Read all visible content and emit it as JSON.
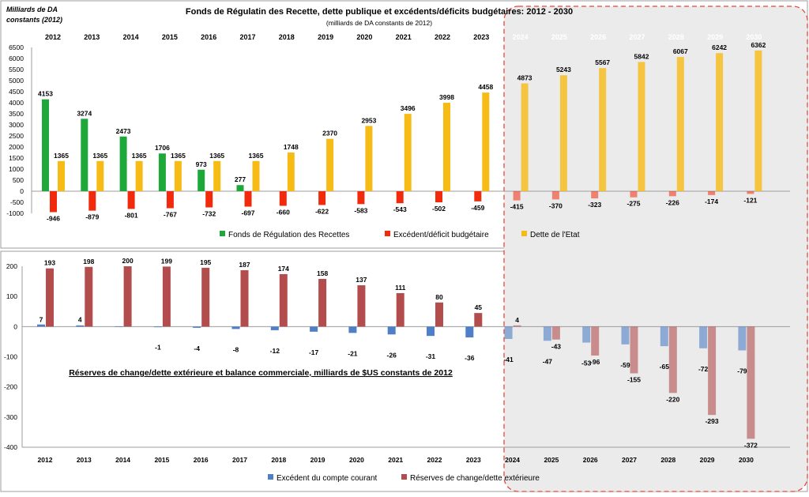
{
  "chart_data": [
    {
      "type": "bar",
      "title": "Fonds de Régulatin des Recette, dette publique et excédents/déficits budgétaires: 2012 - 2030",
      "subtitle": "(milliards de DA constants de 2012)",
      "units_label_line1": "Milliards de DA",
      "units_label_line2": "constants (2012)",
      "categories": [
        "2012",
        "2013",
        "2014",
        "2015",
        "2016",
        "2017",
        "2018",
        "2019",
        "2020",
        "2021",
        "2022",
        "2023",
        "2024",
        "2025",
        "2026",
        "2027",
        "2028",
        "2029",
        "2030"
      ],
      "ylim": [
        -1000,
        6500
      ],
      "yticks": [
        6500,
        6000,
        5500,
        5000,
        4500,
        4000,
        3500,
        3000,
        2500,
        2000,
        1500,
        1000,
        500,
        0,
        -500,
        -1000
      ],
      "legend_position": "bottom",
      "series": [
        {
          "name": "Fonds de Régulation des Recettes",
          "color": "#1fa83a",
          "values": [
            4153,
            3274,
            2473,
            1706,
            973,
            277,
            null,
            null,
            null,
            null,
            null,
            null,
            null,
            null,
            null,
            null,
            null,
            null,
            null
          ]
        },
        {
          "name": "Excédent/déficit budgétaire",
          "color": "#f02a0a",
          "values": [
            -946,
            -879,
            -801,
            -767,
            -732,
            -697,
            -660,
            -622,
            -583,
            -543,
            -502,
            -459,
            -415,
            -370,
            -323,
            -275,
            -226,
            -174,
            -121
          ]
        },
        {
          "name": "Dette de l'Etat",
          "color": "#f7bb16",
          "values": [
            1365,
            1365,
            1365,
            1365,
            1365,
            1365,
            1748,
            2370,
            2953,
            3496,
            3998,
            4458,
            4873,
            5243,
            5567,
            5842,
            6067,
            6242,
            6362
          ]
        }
      ]
    },
    {
      "type": "bar",
      "title": "Réserves de change/dette extérieure et balance commerciale, milliards de $US constants de 2012",
      "categories": [
        "2012",
        "2013",
        "2014",
        "2015",
        "2016",
        "2017",
        "2018",
        "2019",
        "2020",
        "2021",
        "2022",
        "2023",
        "2024",
        "2025",
        "2026",
        "2027",
        "2028",
        "2029",
        "2030"
      ],
      "ylim": [
        -400,
        200
      ],
      "yticks": [
        200,
        100,
        0,
        -100,
        -200,
        -300,
        -400
      ],
      "legend_position": "bottom",
      "series": [
        {
          "name": "Excédent du compte courant",
          "color": "#4f7fc6",
          "values": [
            7,
            4,
            1,
            -1,
            -4,
            -8,
            -12,
            -17,
            -21,
            -26,
            -31,
            -36,
            -41,
            -47,
            -53,
            -59,
            -65,
            -72,
            -79
          ]
        },
        {
          "name": "Réserves de change/dette extérieure",
          "color": "#b34c4c",
          "values": [
            193,
            198,
            200,
            199,
            195,
            187,
            174,
            158,
            137,
            111,
            80,
            45,
            4,
            -43,
            -96,
            -155,
            -220,
            -293,
            -372
          ]
        }
      ],
      "top_labels": [
        "7",
        "4",
        "",
        "",
        "",
        "",
        "",
        "",
        "",
        "",
        "",
        "",
        "",
        "",
        "",
        "",
        "",
        "",
        ""
      ],
      "bottom_labels": [
        "",
        "",
        "",
        "-1",
        "-4",
        "-8",
        "-12",
        "-17",
        "-21",
        "-26",
        "-31",
        "-36",
        "-41",
        "-47",
        "-53",
        "-59",
        "-65",
        "-72",
        "-79"
      ]
    }
  ]
}
